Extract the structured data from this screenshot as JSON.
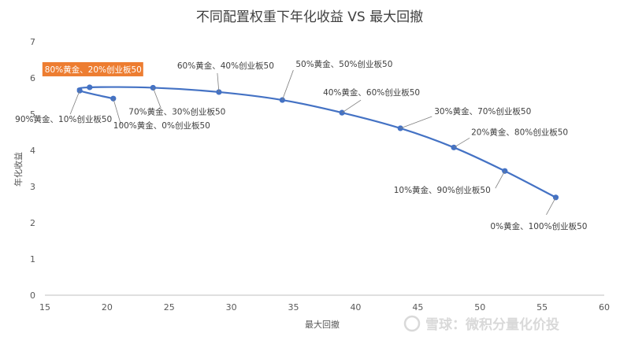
{
  "chart_data": {
    "type": "scatter",
    "title": "不同配置权重下年化收益 VS 最大回撤",
    "xlabel": "最大回撤",
    "ylabel": "年化收益",
    "xlim": [
      15,
      60
    ],
    "ylim": [
      0,
      7
    ],
    "xticks": [
      15,
      20,
      25,
      30,
      35,
      40,
      45,
      50,
      55,
      60
    ],
    "yticks": [
      0,
      1,
      2,
      3,
      4,
      5,
      6,
      7
    ],
    "grid": false,
    "smooth_line": true,
    "series": [
      {
        "color": "#4472c4",
        "points": [
          {
            "x": 20.5,
            "y": 5.43,
            "label": "100%黄金、0%创业板50"
          },
          {
            "x": 17.8,
            "y": 5.65,
            "label": "90%黄金、10%创业板50"
          },
          {
            "x": 18.6,
            "y": 5.74,
            "label": "80%黄金、20%创业板50",
            "highlight": true
          },
          {
            "x": 23.7,
            "y": 5.73,
            "label": "70%黄金、30%创业板50"
          },
          {
            "x": 29.0,
            "y": 5.61,
            "label": "60%黄金、40%创业板50"
          },
          {
            "x": 34.1,
            "y": 5.39,
            "label": "50%黄金、50%创业板50"
          },
          {
            "x": 38.9,
            "y": 5.04,
            "label": "40%黄金、60%创业板50"
          },
          {
            "x": 43.6,
            "y": 4.61,
            "label": "30%黄金、70%创业板50"
          },
          {
            "x": 47.9,
            "y": 4.08,
            "label": "20%黄金、80%创业板50"
          },
          {
            "x": 52.0,
            "y": 3.43,
            "label": "10%黄金、90%创业板50"
          },
          {
            "x": 56.1,
            "y": 2.7,
            "label": "0%黄金、100%创业板50"
          }
        ]
      }
    ],
    "highlight_color": "#ed7d31"
  },
  "watermark": "雪球：微积分量化价投"
}
